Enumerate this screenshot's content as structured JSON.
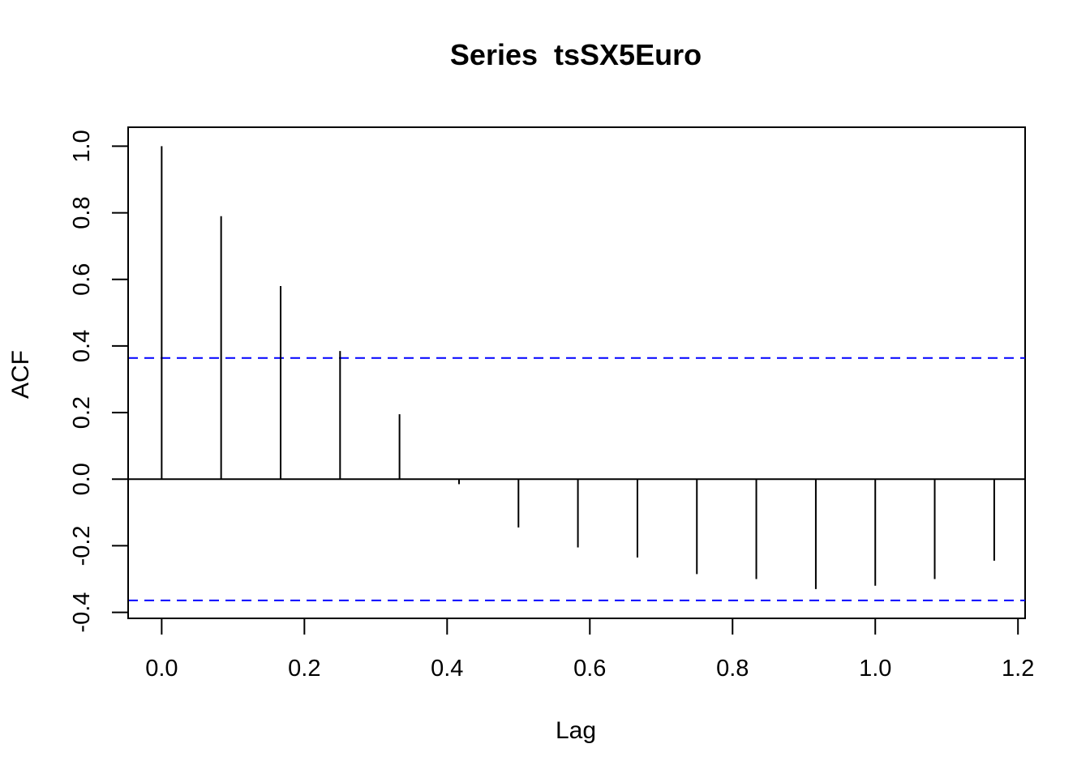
{
  "chart_data": {
    "type": "bar",
    "subtype": "acf",
    "title": "Series  tsSX5Euro",
    "xlabel": "Lag",
    "ylabel": "ACF",
    "xlim": [
      -0.047,
      1.21
    ],
    "ylim": [
      -0.418,
      1.057
    ],
    "x_ticks": [
      0.0,
      0.2,
      0.4,
      0.6,
      0.8,
      1.0,
      1.2
    ],
    "x_tick_labels": [
      "0.0",
      "0.2",
      "0.4",
      "0.6",
      "0.8",
      "1.0",
      "1.2"
    ],
    "y_ticks": [
      -0.4,
      -0.2,
      0.0,
      0.2,
      0.4,
      0.6,
      0.8,
      1.0
    ],
    "y_tick_labels": [
      "-0.4",
      "-0.2",
      "0.0",
      "0.2",
      "0.4",
      "0.6",
      "0.8",
      "1.0"
    ],
    "lags": [
      0.0,
      0.0833,
      0.1667,
      0.25,
      0.3333,
      0.4167,
      0.5,
      0.5833,
      0.6667,
      0.75,
      0.8333,
      0.9167,
      1.0,
      1.0833,
      1.1667
    ],
    "values": [
      1.0,
      0.79,
      0.58,
      0.385,
      0.195,
      -0.015,
      -0.145,
      -0.205,
      -0.235,
      -0.285,
      -0.3,
      -0.33,
      -0.32,
      -0.3,
      -0.245
    ],
    "confidence_bound": 0.364,
    "colors": {
      "bars": "#000000",
      "confidence_lines": "#0000ff",
      "zero_line": "#000000"
    },
    "grid": false
  }
}
